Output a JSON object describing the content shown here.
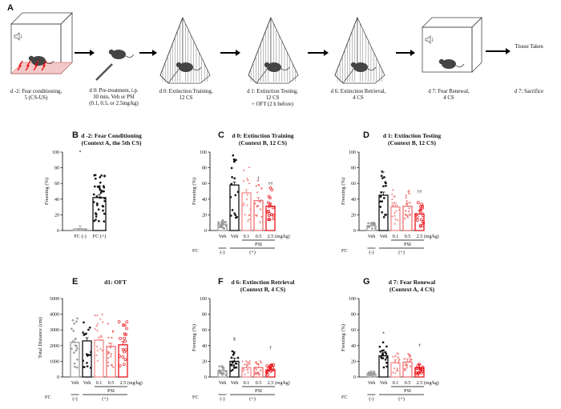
{
  "colors": {
    "black": "#111111",
    "gray": "#999999",
    "pink": "#f08a8a",
    "salmon": "#e86a6a",
    "red": "#e8141a"
  },
  "timeline": {
    "letter": "A",
    "steps": [
      {
        "id": "s1",
        "text": [
          "d -2: Fear conditioning,",
          "5 (CS-US)"
        ]
      },
      {
        "id": "s2",
        "text": [
          "d 0: Pre-treatment, i.p.",
          "30 min, Veh or PSI",
          "(0.1, 0.5, or 2.5mg/kg)"
        ]
      },
      {
        "id": "s3",
        "text": [
          "d 0: Extinction Training,",
          "12 CS"
        ]
      },
      {
        "id": "s4",
        "text": [
          "d 1: Extinction Testing,",
          "12 CS",
          "+ OFT (2 h before)"
        ]
      },
      {
        "id": "s5",
        "text": [
          "d 6: Extinction Retrieval,",
          "4 CS"
        ]
      },
      {
        "id": "s6",
        "text": [
          "d 7: Fear Renewal,",
          "4 CS"
        ]
      },
      {
        "id": "s7",
        "text": [
          "Tissue Taken"
        ]
      },
      {
        "id": "s8",
        "text": [
          "d 7: Sacrifice"
        ]
      }
    ]
  },
  "chart_data": [
    {
      "id": "B",
      "type": "bar",
      "title": [
        "d -2: Fear Conditioning",
        "(Context A, the 5th CS)"
      ],
      "ylabel": "Freezing (%)",
      "ylim": [
        0,
        100
      ],
      "yticks": [
        0,
        20,
        40,
        60,
        80,
        100
      ],
      "categories": [
        "FC (-)",
        "FC (+)"
      ],
      "values": [
        2,
        42
      ],
      "annotations": [
        "*"
      ]
    },
    {
      "id": "C",
      "type": "bar",
      "title": [
        "d 0: Extinction Training",
        "(Context B, 12 CS)"
      ],
      "ylabel": "Freezing (%)",
      "ylim": [
        0,
        100
      ],
      "yticks": [
        0,
        20,
        40,
        60,
        80,
        100
      ],
      "categories": [
        "Veh",
        "Veh",
        "0.1",
        "0.5",
        "2.5"
      ],
      "values": [
        8,
        58,
        48,
        38,
        31
      ],
      "annotations": [
        "",
        "*",
        "",
        "†",
        "††"
      ],
      "unit": "(mg/kg)",
      "drug": "PSI",
      "fc_label": "FC",
      "groups": [
        "(-)",
        "(+)"
      ]
    },
    {
      "id": "D",
      "type": "bar",
      "title": [
        "d 1: Extinction Testing",
        "(Context B, 12 CS)"
      ],
      "ylabel": "Freezing (%)",
      "ylim": [
        0,
        100
      ],
      "yticks": [
        0,
        20,
        40,
        60,
        80,
        100
      ],
      "categories": [
        "Veh",
        "Veh",
        "0.1",
        "0.5",
        "2.5"
      ],
      "values": [
        6,
        45,
        30,
        31,
        21
      ],
      "annotations": [
        "",
        "*",
        "",
        "",
        "††"
      ],
      "unit": "(mg/kg)",
      "drug": "PSI",
      "fc_label": "FC",
      "groups": [
        "(-)",
        "(+)"
      ]
    },
    {
      "id": "E",
      "type": "bar",
      "title": [
        "d1: OFT"
      ],
      "ylabel": "Total Distance (cm)",
      "ylim": [
        0,
        5000
      ],
      "yticks": [
        0,
        1000,
        2000,
        3000,
        4000,
        5000
      ],
      "categories": [
        "Veh",
        "Veh",
        "0.1",
        "0.5",
        "2.5"
      ],
      "values": [
        2200,
        2300,
        2350,
        1950,
        2050
      ],
      "annotations": [
        "",
        "",
        "",
        "",
        ""
      ],
      "unit": "(mg/kg)",
      "drug": "PSI",
      "fc_label": "FC",
      "groups": [
        "(-)",
        "(+)"
      ]
    },
    {
      "id": "F",
      "type": "bar",
      "title": [
        "d 6: Extinction Retrieval",
        "(Context B, 4 CS)"
      ],
      "ylabel": "Freezing (%)",
      "ylim": [
        0,
        100
      ],
      "yticks": [
        0,
        20,
        40,
        60,
        80,
        100
      ],
      "categories": [
        "Veh",
        "Veh",
        "0.1",
        "0.5",
        "2.5"
      ],
      "values": [
        8,
        20,
        12,
        12,
        9
      ],
      "annotations": [
        "",
        "§",
        "",
        "",
        "†"
      ],
      "unit": "(mg/kg)",
      "drug": "PSI",
      "fc_label": "FC",
      "groups": [
        "(-)",
        "(+)"
      ]
    },
    {
      "id": "G",
      "type": "bar",
      "title": [
        "d 7: Fear Renewal",
        "(Context A, 4 CS)"
      ],
      "ylabel": "Freezing (%)",
      "ylim": [
        0,
        100
      ],
      "yticks": [
        0,
        20,
        40,
        60,
        80,
        100
      ],
      "categories": [
        "Veh",
        "Veh",
        "0.1",
        "0.5",
        "2.5"
      ],
      "values": [
        4,
        27,
        18,
        19,
        12
      ],
      "annotations": [
        "",
        "*",
        "",
        "",
        "†"
      ],
      "unit": "(mg/kg)",
      "drug": "PSI",
      "fc_label": "FC",
      "groups": [
        "(-)",
        "(+)"
      ]
    }
  ]
}
